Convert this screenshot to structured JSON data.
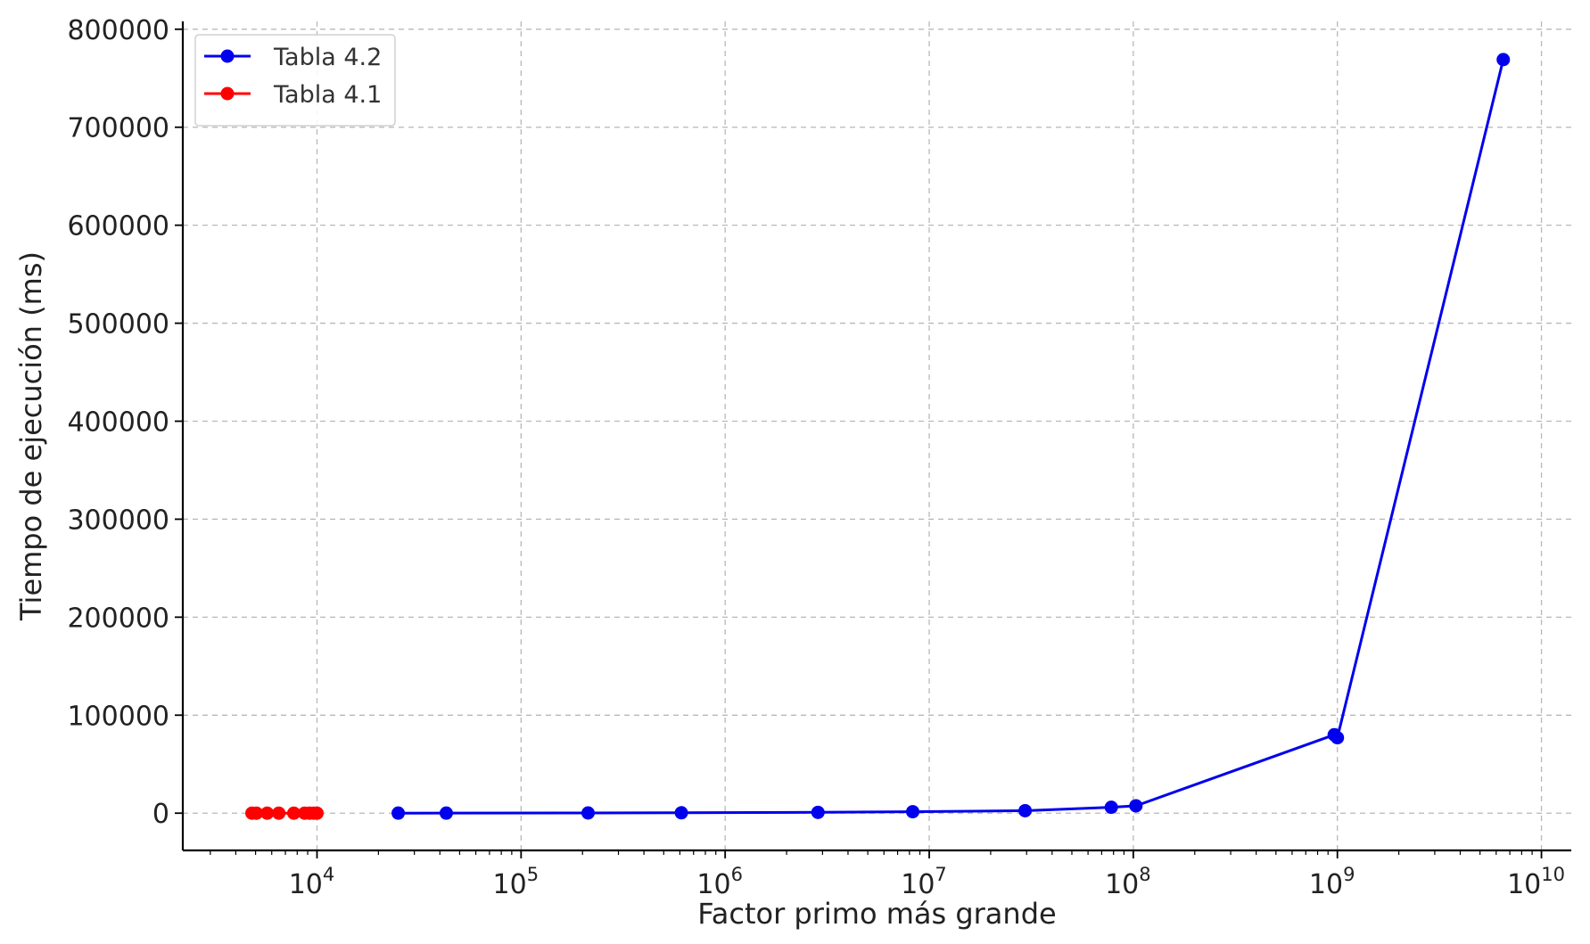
{
  "chart_data": {
    "type": "line",
    "title": "",
    "xlabel": "Factor primo más grande",
    "ylabel": "Tiempo de ejecución (ms)",
    "xscale": "log",
    "xlim": [
      2200,
      14000000000
    ],
    "ylim": [
      -38000,
      808000
    ],
    "grid": true,
    "legend_position": "top-left",
    "x_ticks": [
      {
        "value": 10000,
        "base": "10",
        "exp": "4"
      },
      {
        "value": 100000,
        "base": "10",
        "exp": "5"
      },
      {
        "value": 1000000,
        "base": "10",
        "exp": "6"
      },
      {
        "value": 10000000,
        "base": "10",
        "exp": "7"
      },
      {
        "value": 100000000,
        "base": "10",
        "exp": "8"
      },
      {
        "value": 1000000000,
        "base": "10",
        "exp": "9"
      },
      {
        "value": 10000000000,
        "base": "10",
        "exp": "10"
      }
    ],
    "y_ticks": [
      {
        "value": 0,
        "label": "0"
      },
      {
        "value": 100000,
        "label": "100000"
      },
      {
        "value": 200000,
        "label": "200000"
      },
      {
        "value": 300000,
        "label": "300000"
      },
      {
        "value": 400000,
        "label": "400000"
      },
      {
        "value": 500000,
        "label": "500000"
      },
      {
        "value": 600000,
        "label": "600000"
      },
      {
        "value": 700000,
        "label": "700000"
      },
      {
        "value": 800000,
        "label": "800000"
      }
    ],
    "series": [
      {
        "name": "Tabla 4.2",
        "color": "#0000ee",
        "x": [
          25000,
          43000,
          213000,
          610000,
          2850000,
          8300000,
          29500000,
          78000000,
          103000000,
          965000000,
          1000000000,
          6500000000
        ],
        "y": [
          50,
          80,
          200,
          400,
          800,
          1500,
          2500,
          6000,
          7500,
          80000,
          77000,
          769000
        ]
      },
      {
        "name": "Tabla 4.1",
        "color": "#ff0000",
        "x": [
          4800,
          5050,
          5700,
          6500,
          7700,
          8700,
          9200,
          9650,
          10000
        ],
        "y": [
          10,
          10,
          10,
          10,
          10,
          10,
          10,
          10,
          10
        ]
      }
    ]
  }
}
